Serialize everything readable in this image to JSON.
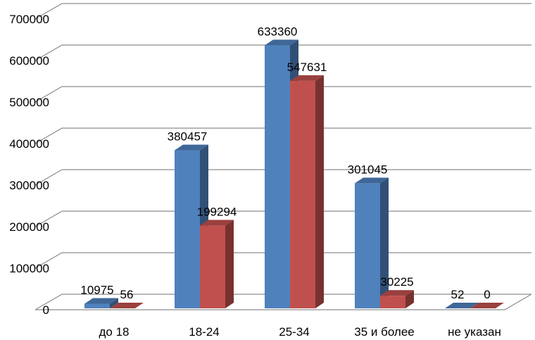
{
  "chart_data": {
    "type": "bar",
    "title": "",
    "xlabel": "",
    "ylabel": "",
    "categories": [
      "до 18",
      "18-24",
      "25-34",
      "35 и более",
      "не указан"
    ],
    "series": [
      {
        "values": [
          10975,
          380457,
          633360,
          301045,
          52
        ],
        "color": "#4F81BD"
      },
      {
        "values": [
          56,
          199294,
          547631,
          30225,
          0
        ],
        "color": "#C0504D"
      }
    ],
    "data_labels": [
      [
        "10975",
        "380457",
        "633360",
        "301045",
        "52"
      ],
      [
        "56",
        "199294",
        "547631",
        "30225",
        "0"
      ]
    ],
    "ylim": [
      0,
      700000
    ],
    "yticks": [
      "0",
      "100000",
      "200000",
      "300000",
      "400000",
      "500000",
      "600000",
      "700000"
    ],
    "grid": true,
    "legend": "none",
    "style": "3d clustered column"
  }
}
